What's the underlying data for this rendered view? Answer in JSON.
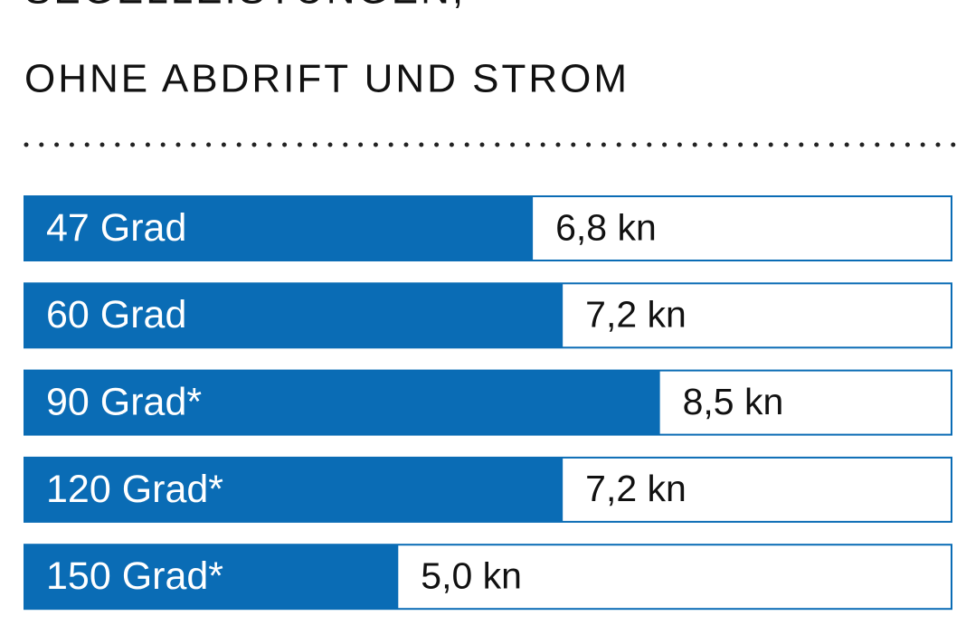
{
  "chart_data": {
    "type": "bar",
    "title": "SEGELLEISTUNGEN,",
    "subtitle": "OHNE ABDRIFT UND STROM",
    "categories": [
      "47 Grad",
      "60 Grad",
      "90 Grad*",
      "120 Grad*",
      "150 Grad*"
    ],
    "values": [
      6.8,
      7.2,
      8.5,
      7.2,
      5.0
    ],
    "value_labels": [
      "6,8 kn",
      "7,2 kn",
      "8,5 kn",
      "7,2 kn",
      "5,0 kn"
    ],
    "color": "#0a6cb5",
    "xlim": [
      0,
      12.4
    ]
  }
}
